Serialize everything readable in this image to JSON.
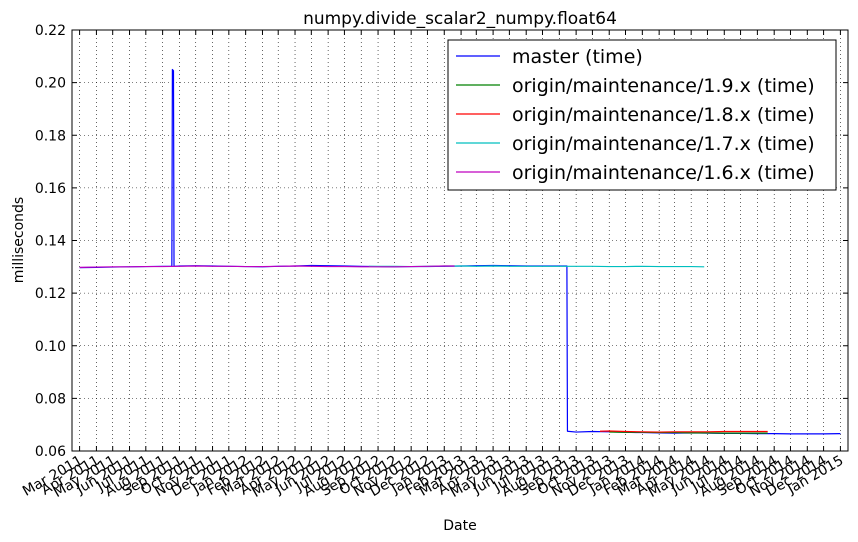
{
  "chart_data": {
    "type": "line",
    "title": "numpy.divide_scalar2_numpy.float64",
    "xlabel": "Date",
    "ylabel": "milliseconds",
    "ylim": [
      0.06,
      0.22
    ],
    "xlim": [
      "2011-02-15",
      "2015-01-15"
    ],
    "grid": true,
    "legend_position": "top-right",
    "y_ticks": [
      "0.06",
      "0.08",
      "0.10",
      "0.12",
      "0.14",
      "0.16",
      "0.18",
      "0.20",
      "0.22"
    ],
    "x_tick_dates": [
      "2011-03-01",
      "2011-04-01",
      "2011-05-01",
      "2011-06-01",
      "2011-07-01",
      "2011-08-01",
      "2011-09-01",
      "2011-10-01",
      "2011-11-01",
      "2011-12-01",
      "2012-01-01",
      "2012-02-01",
      "2012-03-01",
      "2012-04-01",
      "2012-05-01",
      "2012-06-01",
      "2012-07-01",
      "2012-08-01",
      "2012-09-01",
      "2012-10-01",
      "2012-11-01",
      "2012-12-01",
      "2013-01-01",
      "2013-02-01",
      "2013-03-01",
      "2013-04-01",
      "2013-05-01",
      "2013-06-01",
      "2013-07-01",
      "2013-08-01",
      "2013-09-01",
      "2013-10-01",
      "2013-11-01",
      "2013-12-01",
      "2014-01-01",
      "2014-02-01",
      "2014-03-01",
      "2014-04-01",
      "2014-05-01",
      "2014-06-01",
      "2014-07-01",
      "2014-08-01",
      "2014-09-01",
      "2014-10-01",
      "2014-11-01",
      "2014-12-01",
      "2015-01-01"
    ],
    "x_tick_labels": [
      "Mar 2011",
      "Apr 2011",
      "May 2011",
      "Jun 2011",
      "Jul 2011",
      "Aug 2011",
      "Sep 2011",
      "Oct 2011",
      "Nov 2011",
      "Dec 2011",
      "Jan 2012",
      "Feb 2012",
      "Mar 2012",
      "Apr 2012",
      "May 2012",
      "Jun 2012",
      "Jul 2012",
      "Aug 2012",
      "Sep 2012",
      "Oct 2012",
      "Nov 2012",
      "Dec 2012",
      "Jan 2013",
      "Feb 2013",
      "Mar 2013",
      "Apr 2013",
      "May 2013",
      "Jun 2013",
      "Jul 2013",
      "Aug 2013",
      "Sep 2013",
      "Oct 2013",
      "Nov 2013",
      "Dec 2013",
      "Jan 2014",
      "Feb 2014",
      "Mar 2014",
      "Apr 2014",
      "May 2014",
      "Jun 2014",
      "Jul 2014",
      "Aug 2014",
      "Sep 2014",
      "Oct 2014",
      "Nov 2014",
      "Dec 2014",
      "Jan 2015"
    ],
    "series": [
      {
        "name": "master (time)",
        "color": "#0000ff",
        "points": [
          [
            "2011-03-01",
            0.1297
          ],
          [
            "2011-04-01",
            0.1298
          ],
          [
            "2011-05-01",
            0.1299
          ],
          [
            "2011-06-01",
            0.13
          ],
          [
            "2011-07-01",
            0.1301
          ],
          [
            "2011-08-01",
            0.1302
          ],
          [
            "2011-08-18",
            0.1302
          ],
          [
            "2011-08-19",
            0.205
          ],
          [
            "2011-08-21",
            0.2045
          ],
          [
            "2011-08-22",
            0.1302
          ],
          [
            "2011-09-01",
            0.1303
          ],
          [
            "2011-10-01",
            0.1304
          ],
          [
            "2011-11-01",
            0.1303
          ],
          [
            "2011-12-01",
            0.1302
          ],
          [
            "2012-01-01",
            0.1301
          ],
          [
            "2012-02-01",
            0.13
          ],
          [
            "2012-03-01",
            0.1302
          ],
          [
            "2012-04-01",
            0.1303
          ],
          [
            "2012-05-01",
            0.1305
          ],
          [
            "2012-06-01",
            0.1304
          ],
          [
            "2012-07-01",
            0.1303
          ],
          [
            "2012-08-01",
            0.1302
          ],
          [
            "2012-09-01",
            0.1301
          ],
          [
            "2012-10-01",
            0.13
          ],
          [
            "2012-11-01",
            0.1301
          ],
          [
            "2012-12-01",
            0.1301
          ],
          [
            "2013-01-01",
            0.1302
          ],
          [
            "2013-02-01",
            0.1303
          ],
          [
            "2013-03-01",
            0.1304
          ],
          [
            "2013-04-01",
            0.1305
          ],
          [
            "2013-05-01",
            0.1304
          ],
          [
            "2013-06-01",
            0.1303
          ],
          [
            "2013-07-01",
            0.1303
          ],
          [
            "2013-08-01",
            0.1303
          ],
          [
            "2013-08-15",
            0.1303
          ],
          [
            "2013-08-16",
            0.0675
          ],
          [
            "2013-09-01",
            0.0672
          ],
          [
            "2013-10-01",
            0.0674
          ],
          [
            "2013-11-01",
            0.0673
          ],
          [
            "2013-12-01",
            0.0671
          ],
          [
            "2014-01-01",
            0.067
          ],
          [
            "2014-02-01",
            0.0669
          ],
          [
            "2014-03-01",
            0.0668
          ],
          [
            "2014-04-01",
            0.0669
          ],
          [
            "2014-05-01",
            0.0668
          ],
          [
            "2014-06-01",
            0.0667
          ],
          [
            "2014-07-01",
            0.0667
          ],
          [
            "2014-08-01",
            0.0666
          ],
          [
            "2014-09-01",
            0.0666
          ],
          [
            "2014-10-01",
            0.0665
          ],
          [
            "2014-11-01",
            0.0665
          ],
          [
            "2014-12-01",
            0.0665
          ],
          [
            "2015-01-01",
            0.0666
          ]
        ]
      },
      {
        "name": "origin/maintenance/1.9.x (time)",
        "color": "#008000",
        "points": [
          [
            "2013-11-01",
            0.0672
          ],
          [
            "2013-12-01",
            0.0671
          ],
          [
            "2014-01-01",
            0.0671
          ],
          [
            "2014-02-01",
            0.067
          ],
          [
            "2014-03-01",
            0.067
          ],
          [
            "2014-04-01",
            0.0669
          ],
          [
            "2014-05-01",
            0.0669
          ],
          [
            "2014-06-01",
            0.0668
          ],
          [
            "2014-07-01",
            0.0668
          ],
          [
            "2014-08-01",
            0.0668
          ],
          [
            "2014-08-20",
            0.0668
          ]
        ]
      },
      {
        "name": "origin/maintenance/1.8.x (time)",
        "color": "#ff0000",
        "points": [
          [
            "2013-10-15",
            0.0675
          ],
          [
            "2013-11-01",
            0.0676
          ],
          [
            "2013-12-01",
            0.0674
          ],
          [
            "2014-01-01",
            0.0673
          ],
          [
            "2014-02-01",
            0.0672
          ],
          [
            "2014-03-01",
            0.0673
          ],
          [
            "2014-04-01",
            0.0673
          ],
          [
            "2014-05-01",
            0.0673
          ],
          [
            "2014-06-01",
            0.0674
          ],
          [
            "2014-07-01",
            0.0674
          ],
          [
            "2014-08-01",
            0.0674
          ],
          [
            "2014-08-20",
            0.0674
          ]
        ]
      },
      {
        "name": "origin/maintenance/1.7.x (time)",
        "color": "#00bfbf",
        "points": [
          [
            "2012-08-15",
            0.1302
          ],
          [
            "2012-09-01",
            0.1302
          ],
          [
            "2012-10-01",
            0.1302
          ],
          [
            "2012-11-01",
            0.1301
          ],
          [
            "2012-12-01",
            0.1302
          ],
          [
            "2013-01-01",
            0.1303
          ],
          [
            "2013-02-01",
            0.1303
          ],
          [
            "2013-03-01",
            0.1302
          ],
          [
            "2013-04-01",
            0.1303
          ],
          [
            "2013-05-01",
            0.1302
          ],
          [
            "2013-06-01",
            0.1302
          ],
          [
            "2013-07-01",
            0.1302
          ],
          [
            "2013-08-01",
            0.1302
          ],
          [
            "2013-09-01",
            0.1302
          ],
          [
            "2013-10-01",
            0.1302
          ],
          [
            "2013-11-01",
            0.1301
          ],
          [
            "2013-12-01",
            0.1301
          ],
          [
            "2014-01-01",
            0.1302
          ],
          [
            "2014-02-01",
            0.1301
          ],
          [
            "2014-03-01",
            0.1301
          ],
          [
            "2014-04-01",
            0.1301
          ],
          [
            "2014-04-25",
            0.13
          ]
        ]
      },
      {
        "name": "origin/maintenance/1.6.x (time)",
        "color": "#bf00bf",
        "points": [
          [
            "2011-03-01",
            0.1298
          ],
          [
            "2011-04-01",
            0.1299
          ],
          [
            "2011-05-01",
            0.13
          ],
          [
            "2011-06-01",
            0.13
          ],
          [
            "2011-07-01",
            0.1301
          ],
          [
            "2011-08-01",
            0.1301
          ],
          [
            "2011-09-01",
            0.1302
          ],
          [
            "2011-10-01",
            0.1303
          ],
          [
            "2011-11-01",
            0.1302
          ],
          [
            "2011-12-01",
            0.1302
          ],
          [
            "2012-01-01",
            0.1301
          ],
          [
            "2012-02-01",
            0.1301
          ],
          [
            "2012-03-01",
            0.1302
          ],
          [
            "2012-04-01",
            0.1303
          ],
          [
            "2012-05-01",
            0.1302
          ],
          [
            "2012-06-01",
            0.1301
          ],
          [
            "2012-07-01",
            0.1301
          ],
          [
            "2012-08-01",
            0.13
          ],
          [
            "2012-09-01",
            0.13
          ],
          [
            "2012-10-01",
            0.13
          ],
          [
            "2012-11-01",
            0.1301
          ],
          [
            "2012-12-01",
            0.1302
          ],
          [
            "2013-01-01",
            0.1303
          ],
          [
            "2013-01-20",
            0.1303
          ]
        ]
      }
    ]
  }
}
